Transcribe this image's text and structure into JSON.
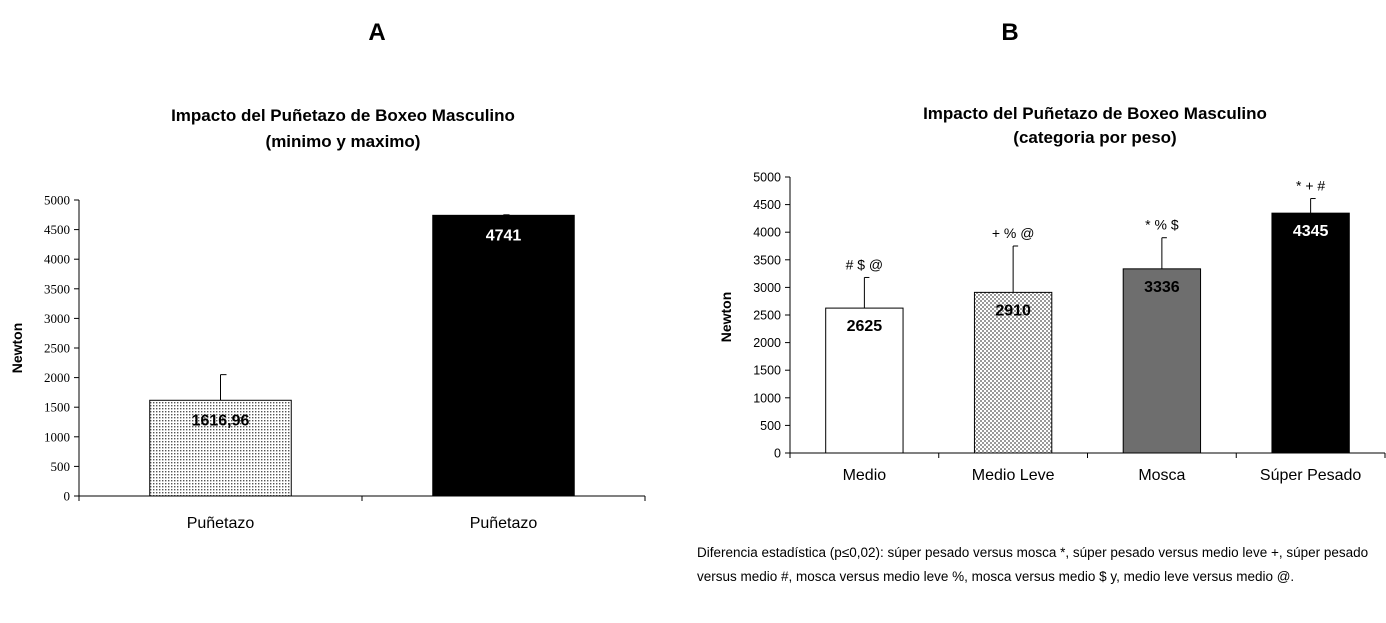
{
  "panels": {
    "a_label": "A",
    "b_label": "B"
  },
  "chart_data": [
    {
      "type": "bar",
      "title": "Impacto del Puñetazo de Boxeo Masculino",
      "subtitle": "(minimo y maximo)",
      "xlabel": "",
      "ylabel": "Newton",
      "ylim": [
        0,
        5000
      ],
      "yticks": [
        "0",
        "500",
        "1000",
        "1500",
        "2000",
        "2500",
        "3000",
        "3500",
        "4000",
        "4500",
        "5000"
      ],
      "grid": false,
      "categories": [
        "Puñetazo",
        "Puñetazo"
      ],
      "values": [
        1616.96,
        4741
      ],
      "value_labels": [
        "1616,96",
        "4741"
      ],
      "error_upper": [
        2050,
        4750
      ],
      "colors": [
        "#d9d9d9",
        "#000000"
      ],
      "patterns": [
        "dotted",
        "solid"
      ],
      "value_label_colors": [
        "#000000",
        "#ffffff"
      ]
    },
    {
      "type": "bar",
      "title": "Impacto del Puñetazo de Boxeo Masculino",
      "subtitle": "(categoria por peso)",
      "xlabel": "",
      "ylabel": "Newton",
      "ylim": [
        0,
        5000
      ],
      "yticks": [
        "0",
        "500",
        "1000",
        "1500",
        "2000",
        "2500",
        "3000",
        "3500",
        "4000",
        "4500",
        "5000"
      ],
      "grid": false,
      "categories": [
        "Medio",
        "Medio Leve",
        "Mosca",
        "Súper Pesado"
      ],
      "values": [
        2625,
        2910,
        3336,
        4345
      ],
      "value_labels": [
        "2625",
        "2910",
        "3336",
        "4345"
      ],
      "error_upper": [
        3180,
        3750,
        3900,
        4610
      ],
      "annotations": [
        "# $ @",
        "+ % @",
        "* % $",
        "* + #"
      ],
      "colors": [
        "#ffffff",
        "#d9d9d9",
        "#6e6e6e",
        "#000000"
      ],
      "patterns": [
        "solid",
        "checker",
        "solid",
        "solid"
      ],
      "value_label_colors": [
        "#000000",
        "#000000",
        "#000000",
        "#ffffff"
      ]
    }
  ],
  "footnote": "Diferencia estadística (p≤0,02): súper pesado versus mosca *, súper pesado versus medio leve +, súper pesado versus medio #, mosca versus medio leve %, mosca versus medio $ y, medio leve versus medio @."
}
